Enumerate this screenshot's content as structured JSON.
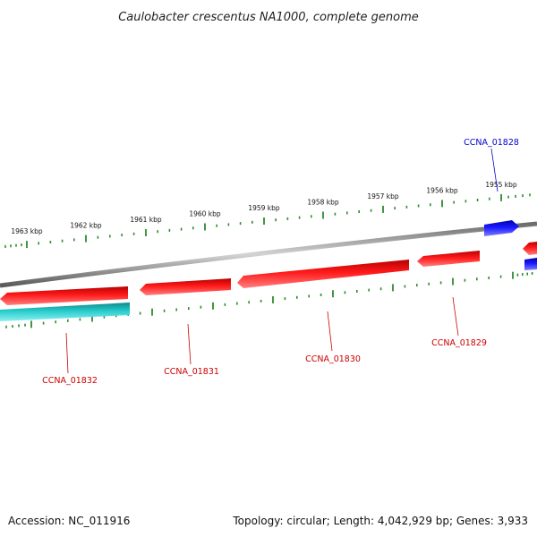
{
  "title": "Caulobacter crescentus NA1000, complete genome",
  "footer": {
    "accession": "Accession: NC_011916",
    "summary": "Topology: circular; Length: 4,042,929 bp; Genes: 3,933"
  },
  "colors": {
    "backbone": "#8a8a8a",
    "tick": "#2e8b2e",
    "gene_reverse": "#ee1111",
    "gene_forward": "#1a1aee",
    "rna": "#22c4c4",
    "label_reverse": "#cc0000",
    "label_forward": "#0000cc"
  },
  "scale_ticks": [
    "1963 kbp",
    "1962 kbp",
    "1961 kbp",
    "1960 kbp",
    "1959 kbp",
    "1958 kbp",
    "1957 kbp",
    "1956 kbp",
    "1955 kbp"
  ],
  "genes": [
    {
      "label": "CCNA_01828",
      "strand": "forward"
    },
    {
      "label": "CCNA_01829",
      "strand": "reverse"
    },
    {
      "label": "CCNA_01830",
      "strand": "reverse"
    },
    {
      "label": "CCNA_01831",
      "strand": "reverse"
    },
    {
      "label": "CCNA_01832",
      "strand": "reverse"
    }
  ]
}
